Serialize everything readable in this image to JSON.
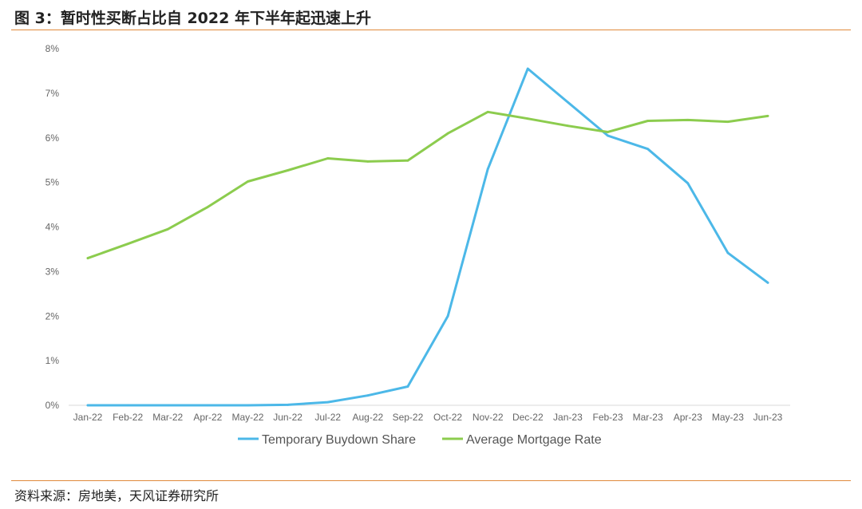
{
  "header": {
    "title": "图 3：暂时性买断占比自 2022 年下半年起迅速上升"
  },
  "footer": {
    "source": "资料来源：房地美，天风证券研究所"
  },
  "colors": {
    "accent_rule": "#e08a3c",
    "buydown": "#4cb8e8",
    "mortgage": "#8ccc4e"
  },
  "chart_data": {
    "type": "line",
    "title": "",
    "xlabel": "",
    "ylabel": "",
    "categories": [
      "Jan-22",
      "Feb-22",
      "Mar-22",
      "Apr-22",
      "May-22",
      "Jun-22",
      "Jul-22",
      "Aug-22",
      "Sep-22",
      "Oct-22",
      "Nov-22",
      "Dec-22",
      "Jan-23",
      "Feb-23",
      "Mar-23",
      "Apr-23",
      "May-23",
      "Jun-23"
    ],
    "y_ticks": [
      "0%",
      "1%",
      "2%",
      "3%",
      "4%",
      "5%",
      "6%",
      "7%",
      "8%"
    ],
    "ylim": [
      0,
      8
    ],
    "grid": false,
    "legend_position": "bottom",
    "series": [
      {
        "name": "Temporary Buydown Share",
        "color": "#4cb8e8",
        "values": [
          0.0,
          0.0,
          0.0,
          0.0,
          0.0,
          0.01,
          0.07,
          0.22,
          0.42,
          2.0,
          5.3,
          7.55,
          6.8,
          6.05,
          5.75,
          4.98,
          3.42,
          2.75
        ]
      },
      {
        "name": "Average Mortgage Rate",
        "color": "#8ccc4e",
        "values": [
          3.3,
          3.62,
          3.95,
          4.45,
          5.02,
          5.27,
          5.54,
          5.47,
          5.49,
          6.1,
          6.58,
          6.43,
          6.27,
          6.13,
          6.38,
          6.4,
          6.36,
          6.49
        ]
      }
    ]
  }
}
